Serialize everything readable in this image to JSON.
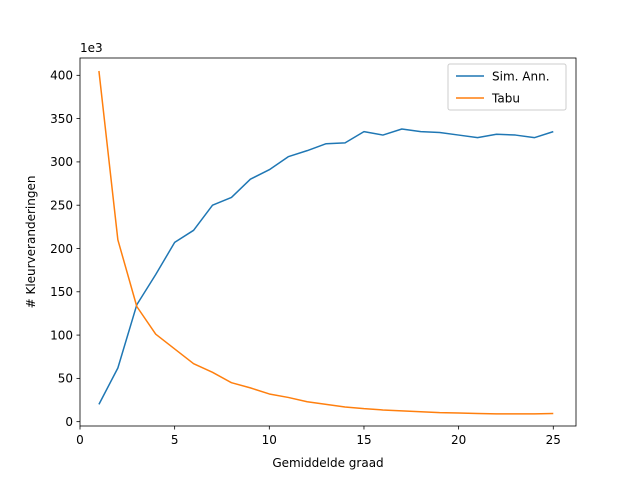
{
  "chart_data": {
    "type": "line",
    "xlabel": "Gemiddelde graad",
    "ylabel": "# Kleurveranderingen",
    "y_offset_label": "1e3",
    "xlim": [
      0,
      26.2
    ],
    "ylim": [
      -5,
      420
    ],
    "xticks": [
      0,
      5,
      10,
      15,
      20,
      25
    ],
    "yticks": [
      0,
      50,
      100,
      150,
      200,
      250,
      300,
      350,
      400
    ],
    "grid": false,
    "legend_position": "top-right",
    "x": [
      1,
      2,
      3,
      4,
      5,
      6,
      7,
      8,
      9,
      10,
      11,
      12,
      13,
      14,
      15,
      16,
      17,
      18,
      19,
      20,
      21,
      22,
      23,
      24,
      25
    ],
    "series": [
      {
        "name": "Sim. Ann.",
        "color": "#1f77b4",
        "values": [
          20,
          62,
          135,
          170,
          207,
          221,
          250,
          259,
          280,
          291,
          306,
          313,
          321,
          322,
          335,
          331,
          338,
          335,
          334,
          331,
          328,
          332,
          331,
          328,
          335
        ]
      },
      {
        "name": "Tabu",
        "color": "#ff7f0e",
        "values": [
          405,
          210,
          133,
          101,
          84,
          67,
          57,
          45,
          39,
          32,
          28,
          23,
          20,
          17,
          15,
          13.5,
          12.5,
          11.5,
          10.5,
          10,
          9.5,
          9,
          9,
          9,
          9.5
        ]
      }
    ]
  }
}
